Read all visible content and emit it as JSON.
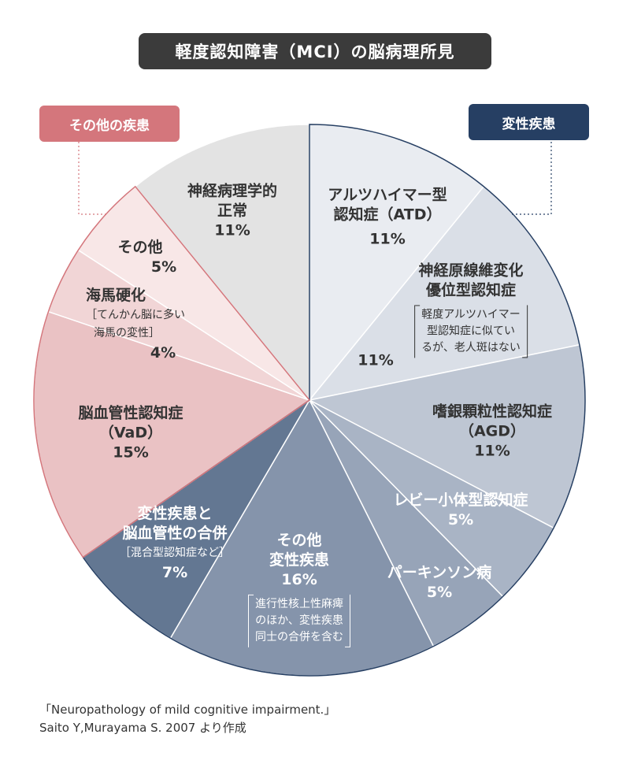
{
  "title": "軽度認知障害（MCI）の脳病理所見",
  "groups": {
    "other": {
      "label": "その他の疾患",
      "color": "#d4767c"
    },
    "degenerative": {
      "label": "変性疾患",
      "color": "#263f63"
    }
  },
  "chart_data": {
    "type": "pie",
    "title": "軽度認知障害（MCI）の脳病理所見",
    "slices": [
      {
        "name": "アルツハイマー型認知症（ATD）",
        "value": 11,
        "pct": "11%",
        "color": "#e9ecf1"
      },
      {
        "name": "神経原線維変化優位型認知症",
        "value": 11,
        "pct": "11%",
        "color": "#dadfe7",
        "note": [
          "軽度アルツハイマー",
          "型認知症に似てい",
          "るが、老人斑はない"
        ]
      },
      {
        "name": "嗜銀顆粒性認知症（AGD）",
        "value": 11,
        "pct": "11%",
        "color": "#bec6d3"
      },
      {
        "name": "レビー小体型認知症",
        "value": 5,
        "pct": "5%",
        "color": "#a9b4c5"
      },
      {
        "name": "パーキンソン病",
        "value": 5,
        "pct": "5%",
        "color": "#97a4b8"
      },
      {
        "name": "その他変性疾患",
        "value": 16,
        "pct": "16%",
        "color": "#8594ab",
        "note": [
          "進行性核上性麻痺",
          "のほか、変性疾患",
          "同士の合併を含む"
        ]
      },
      {
        "name": "変性疾患と脳血管性の合併",
        "value": 7,
        "pct": "7%",
        "color": "#637792",
        "note": [
          "［混合型認知症など］"
        ]
      },
      {
        "name": "脳血管性認知症（VaD）",
        "value": 15,
        "pct": "15%",
        "color": "#eac2c4"
      },
      {
        "name": "海馬硬化",
        "value": 4,
        "pct": "4%",
        "color": "#f1d5d6",
        "note": [
          "［てんかん脳に多い",
          "海馬の変性］"
        ]
      },
      {
        "name": "その他",
        "value": 5,
        "pct": "5%",
        "color": "#f8e7e7"
      },
      {
        "name": "神経病理学的正常",
        "value": 11,
        "pct": "11%",
        "color": "#e3e3e3"
      }
    ]
  },
  "labels": {
    "atd": {
      "l1": "アルツハイマー型",
      "l2": "認知症（ATD）",
      "pct": "11%"
    },
    "nft": {
      "l1": "神経原線維変化",
      "l2": "優位型認知症",
      "n1": "軽度アルツハイマー",
      "n2": "型認知症に似てい",
      "n3": "るが、老人斑はない",
      "pct": "11%"
    },
    "agd": {
      "l1": "嗜銀顆粒性認知症",
      "l2": "（AGD）",
      "pct": "11%"
    },
    "dlb": {
      "l1": "レビー小体型認知症",
      "pct": "5%"
    },
    "pd": {
      "l1": "パーキンソン病",
      "pct": "5%"
    },
    "otherdeg": {
      "l1": "その他",
      "l2": "変性疾患",
      "pct": "16%",
      "n1": "進行性核上性麻痺",
      "n2": "のほか、変性疾患",
      "n3": "同士の合併を含む"
    },
    "mixed": {
      "l1": "変性疾患と",
      "l2": "脳血管性の合併",
      "n1": "［混合型認知症など］",
      "pct": "7%"
    },
    "vad": {
      "l1": "脳血管性認知症",
      "l2": "（VaD）",
      "pct": "15%"
    },
    "hs": {
      "l1": "海馬硬化",
      "n1": "［てんかん脳に多い",
      "n2": "海馬の変性］",
      "pct": "4%"
    },
    "other": {
      "l1": "その他",
      "pct": "5%"
    },
    "normal": {
      "l1": "神経病理学的",
      "l2": "正常",
      "pct": "11%"
    }
  },
  "caption": {
    "line1": "「Neuropathology of mild cognitive impairment.」",
    "line2": "Saito Y,Murayama S. 2007 より作成"
  }
}
